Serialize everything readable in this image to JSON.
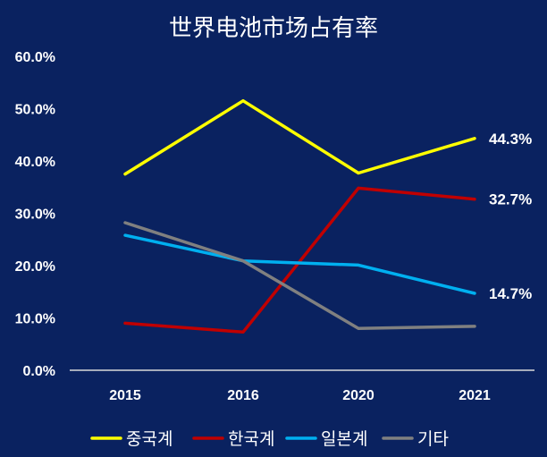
{
  "chart_data": {
    "type": "line",
    "title": "世界电池市场占有率",
    "categories": [
      "2015",
      "2016",
      "2020",
      "2021"
    ],
    "y_ticks": [
      "0.0%",
      "10.0%",
      "20.0%",
      "30.0%",
      "40.0%",
      "50.0%",
      "60.0%"
    ],
    "ylim": [
      0,
      60
    ],
    "grid": false,
    "legend_position": "bottom",
    "series": [
      {
        "name": "중국계",
        "color": "#ffff00",
        "values": [
          37.5,
          51.5,
          37.7,
          44.3
        ],
        "end_label": "44.3%"
      },
      {
        "name": "한국계",
        "color": "#c00000",
        "values": [
          9.0,
          7.3,
          34.8,
          32.7
        ],
        "end_label": "32.7%"
      },
      {
        "name": "일본계",
        "color": "#00b0f0",
        "values": [
          25.8,
          20.9,
          20.1,
          14.7
        ],
        "end_label": "14.7%"
      },
      {
        "name": "기타",
        "color": "#808080",
        "values": [
          28.2,
          20.9,
          8.0,
          8.4
        ],
        "end_label": ""
      }
    ]
  }
}
